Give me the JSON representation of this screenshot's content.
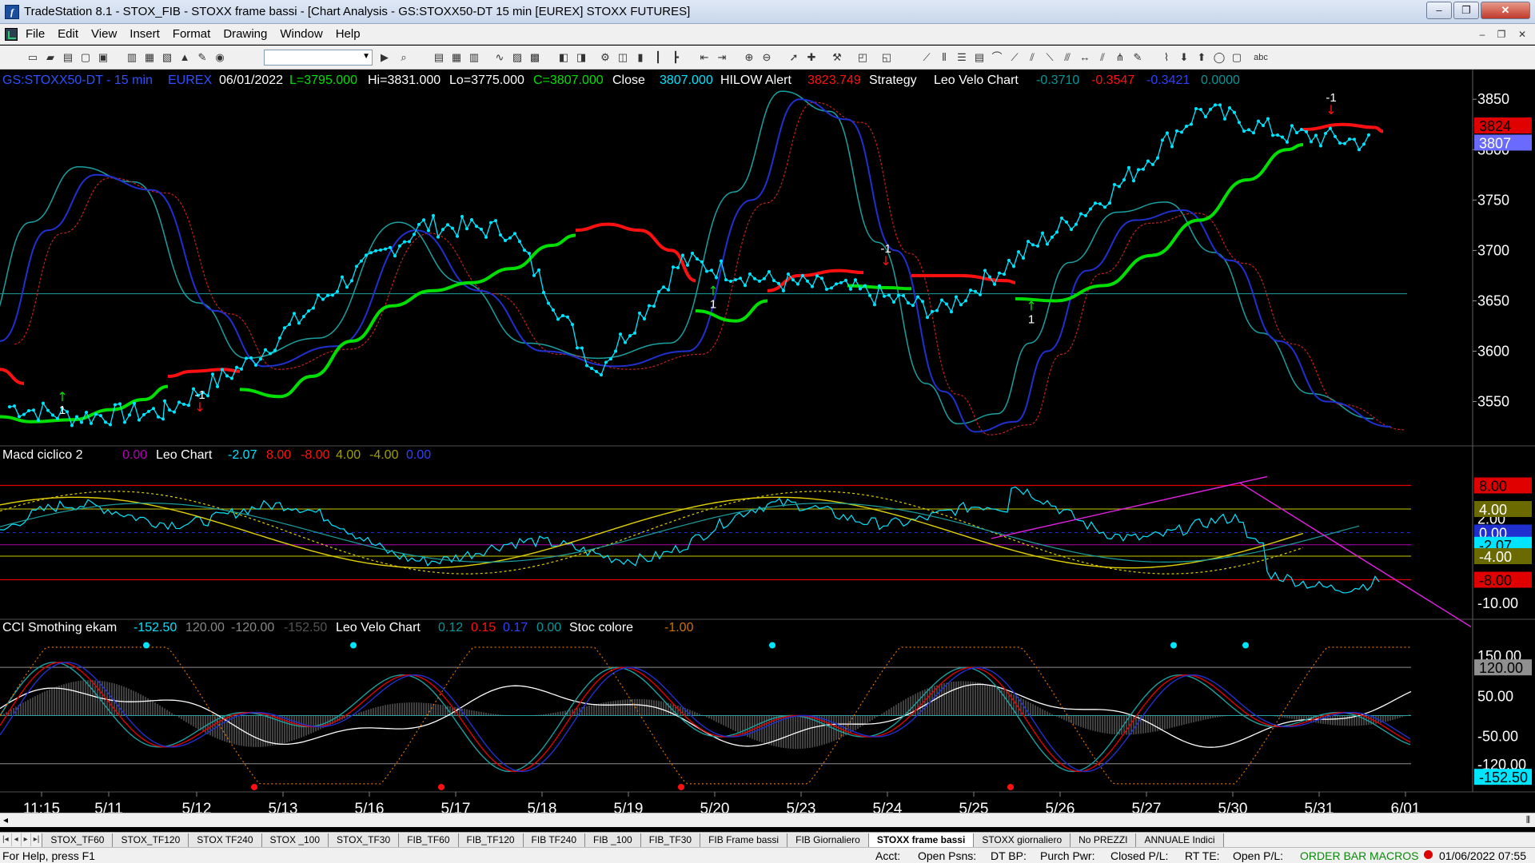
{
  "window": {
    "title": "TradeStation 8.1 - STOX_FIB - STOXX frame bassi - [Chart Analysis - GS:STOXX50-DT  15 min  [EUREX] STOXX FUTURES]",
    "minimize": "‒",
    "maximize": "❐",
    "close": "✕"
  },
  "menu": {
    "items": [
      "File",
      "Edit",
      "View",
      "Insert",
      "Format",
      "Drawing",
      "Window",
      "Help"
    ]
  },
  "chart_header": {
    "symbol": "GS:STOXX50-DT - 15 min",
    "exchange": "EUREX",
    "date": "06/01/2022",
    "low_l": "L=3795.000",
    "hi": "Hi=3831.000",
    "lo": "Lo=3775.000",
    "close_c": "C=3807.000",
    "close_label": "Close",
    "close_value": "3807.000",
    "hilow_label": "HILOW Alert",
    "hilow_value": "3823.749",
    "strategy_label": "Strategy",
    "leo_label": "Leo Velo Chart",
    "leo_v1": "-0.3710",
    "leo_v2": "-0.3547",
    "leo_v3": "-0.3421",
    "leo_v4": "0.0000"
  },
  "macd_header": {
    "name": "Macd ciclico 2",
    "v0": "0.00",
    "leo": "Leo Chart",
    "v1": "-2.07",
    "v2": "8.00",
    "v3": "-8.00",
    "v4": "4.00",
    "v5": "-4.00",
    "v6": "0.00"
  },
  "cci_header": {
    "name": "CCI Smothing ekam",
    "v1": "-152.50",
    "v2": "120.00",
    "v3": "-120.00",
    "v4": "-152.50",
    "leo": "Leo Velo Chart",
    "l1": "0.12",
    "l2": "0.15",
    "l3": "0.17",
    "l4": "0.00",
    "stoc": "Stoc colore",
    "stoc_v": "-1.00"
  },
  "price_axis": {
    "ticks": [
      "3850",
      "3800",
      "3750",
      "3700",
      "3650",
      "3600",
      "3550"
    ],
    "badge_hilow": "3824",
    "badge_close": "3807"
  },
  "macd_axis": {
    "ticks": [
      "2.00",
      "-10.00"
    ],
    "badges": [
      "8.00",
      "4.00",
      "0.00",
      "-2.07",
      "-4.00",
      "-8.00"
    ]
  },
  "cci_axis": {
    "ticks": [
      "150.00",
      "50.00",
      "-50.00",
      "-120.00"
    ],
    "badges": [
      "120.00",
      "-152.50"
    ]
  },
  "time_axis": {
    "labels": [
      "11:15",
      "5/11",
      "5/12",
      "5/13",
      "5/16",
      "5/17",
      "5/18",
      "5/19",
      "5/20",
      "5/23",
      "5/24",
      "5/25",
      "5/26",
      "5/27",
      "5/30",
      "5/31",
      "6/01"
    ]
  },
  "signals": {
    "long": "1",
    "short": "-1"
  },
  "tabs": {
    "items": [
      "STOX_TF60",
      "STOX_TF120",
      "STOX TF240",
      "STOX _100",
      "STOX_TF30",
      "FIB_TF60",
      "FIB_TF120",
      "FIB TF240",
      "FIB _100",
      "FIB_TF30",
      "FIB Frame bassi",
      "FIB Giornaliero",
      "STOXX frame bassi",
      "STOXX giornaliero",
      "No PREZZI",
      "ANNUALE Indici"
    ],
    "active": "STOXX frame bassi"
  },
  "status": {
    "help": "For Help, press F1",
    "acct": "Acct:",
    "open_psns": "Open Psns:",
    "dt_bp": "DT BP:",
    "purch_pwr": "Purch Pwr:",
    "closed_pl": "Closed P/L:",
    "rt_te": "RT TE:",
    "open_pl": "Open P/L:",
    "order_bar": "ORDER BAR",
    "macros": "MACROS",
    "datetime": "01/06/2022 07:55"
  },
  "chart_data": {
    "type": "line",
    "x": [
      "5/10 11:15",
      "5/11",
      "5/12",
      "5/13",
      "5/16",
      "5/17",
      "5/18",
      "5/19",
      "5/20",
      "5/23",
      "5/24",
      "5/25",
      "5/26",
      "5/27",
      "5/30",
      "5/31",
      "6/01"
    ],
    "series": [
      {
        "name": "Close",
        "values": [
          3545,
          3535,
          3540,
          3590,
          3665,
          3725,
          3720,
          3580,
          3690,
          3670,
          3660,
          3640,
          3700,
          3760,
          3840,
          3815,
          3807
        ]
      }
    ],
    "ylim": [
      3510,
      3870
    ],
    "colors": {
      "price": "#00e5ff",
      "up": "#00e000",
      "down": "#ff1010",
      "accent_blue": "#3040ff"
    }
  }
}
